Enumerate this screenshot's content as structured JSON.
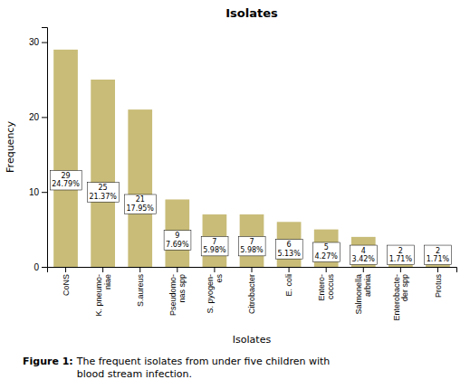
{
  "chart_data": {
    "type": "bar",
    "title": "Isolates",
    "xlabel": "Isolates",
    "ylabel": "Frequency",
    "categories": [
      "CoNS",
      "K. pneumo-\nniae",
      "S.aureus",
      "Pseudomo-\nnas spp",
      "S. pyogen-\nes",
      "Citrobacter",
      "E. coli",
      "Entero-\ncoccus",
      "Salmonella\narbnia",
      "Enterobacte-\nder spp",
      "Protus"
    ],
    "values": [
      29,
      25,
      21,
      9,
      7,
      7,
      6,
      5,
      4,
      2,
      2
    ],
    "value_labels": [
      "29\n24.79%",
      "25\n21.37%",
      "21\n17.95%",
      "9\n7.69%",
      "7\n5.98%",
      "7\n5.98%",
      "6\n5.13%",
      "5\n4.27%",
      "4\n3.42%",
      "2\n1.71%",
      "2\n1.71%"
    ],
    "data_labels": true,
    "color": "#c8bc78",
    "ylim": [
      0,
      32
    ],
    "yticks": [
      0,
      10,
      20,
      30
    ],
    "grid": false,
    "annotations": [
      "Figure 1:",
      "The frequent isolates from under five children with\nblood stream infection."
    ]
  }
}
